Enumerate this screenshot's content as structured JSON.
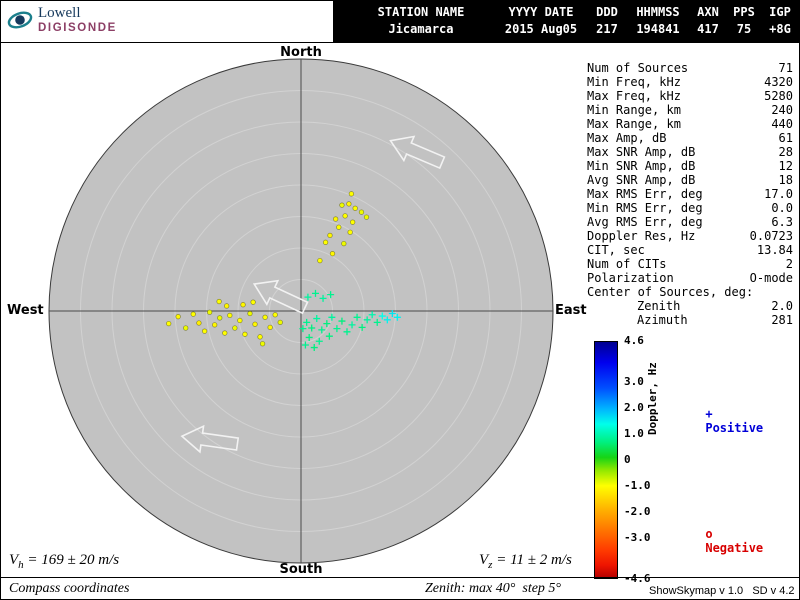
{
  "logo": {
    "name": "Lowell",
    "product": "DIGISONDE"
  },
  "header": {
    "columns": [
      "STATION NAME",
      "YYYY DATE",
      "DDD",
      "HHMMSS",
      "AXN",
      "PPS",
      "IGP"
    ],
    "values": [
      "Jicamarca",
      "2015 Aug05",
      "217",
      "194841",
      "417",
      "75",
      "+8G"
    ]
  },
  "compass": {
    "north": "North",
    "south": "South",
    "east": "East",
    "west": "West"
  },
  "stats": {
    "rows": [
      {
        "label": "Num of Sources",
        "value": "71"
      },
      {
        "label": "Min Freq, kHz",
        "value": "4320"
      },
      {
        "label": "Max Freq, kHz",
        "value": "5280"
      },
      {
        "label": "Min Range, km",
        "value": "240"
      },
      {
        "label": "Max Range, km",
        "value": "440"
      },
      {
        "label": "Max Amp, dB",
        "value": "61"
      },
      {
        "label": "Max SNR Amp, dB",
        "value": "28"
      },
      {
        "label": "Min SNR Amp, dB",
        "value": "12"
      },
      {
        "label": "Avg SNR Amp, dB",
        "value": "18"
      },
      {
        "label": "Max RMS Err, deg",
        "value": "17.0"
      },
      {
        "label": "Min RMS Err, deg",
        "value": "0.0"
      },
      {
        "label": "Avg RMS Err, deg",
        "value": "6.3"
      },
      {
        "label": "Doppler Res, Hz",
        "value": "0.0723"
      },
      {
        "label": "CIT, sec",
        "value": "13.84"
      },
      {
        "label": "Num of CITs",
        "value": "2"
      },
      {
        "label": "Polarization",
        "value": "O-mode"
      },
      {
        "label": "Center of Sources, deg:",
        "value": ""
      },
      {
        "label": "Zenith",
        "value": "2.0",
        "indent": true
      },
      {
        "label": "Azimuth",
        "value": "281",
        "indent": true
      }
    ]
  },
  "colorbar": {
    "label": "Doppler, Hz",
    "max": 4.6,
    "min": -4.6,
    "ticks": [
      "4.6",
      "3.0",
      "2.0",
      "1.0",
      "0",
      "-1.0",
      "-2.0",
      "-3.0",
      "-4.6"
    ],
    "legend": {
      "positive": {
        "marker": "+",
        "label": "Positive",
        "color": "#0000d8"
      },
      "negative": {
        "marker": "o",
        "label": "Negative",
        "color": "#d80000"
      }
    }
  },
  "footer": {
    "vh": {
      "symbol": "V",
      "sub": "h",
      "rest": " = 169 ± 20 m/s"
    },
    "vz": {
      "symbol": "V",
      "sub": "z",
      "rest": " = 11 ± 2 m/s"
    },
    "coordinates_note": "Compass coordinates",
    "zenith_note": "Zenith: max 40°  step 5°",
    "version": "ShowSkymap v 1.0   SD v 4.2"
  },
  "chart_data": {
    "type": "scatter",
    "projection": "polar zenith-azimuth skymap, compass coordinates",
    "zenith_max_deg": 40,
    "zenith_step_deg": 5,
    "doppler_range_hz": [
      -4.6,
      4.6
    ],
    "marker_rule": "plus = positive Doppler source, circle = negative Doppler source",
    "colormap_stops": [
      {
        "v": 4.6,
        "color": "#000090"
      },
      {
        "v": 3.8,
        "color": "#0000ee"
      },
      {
        "v": 2.8,
        "color": "#0050ff"
      },
      {
        "v": 2.0,
        "color": "#00b4ff"
      },
      {
        "v": 1.4,
        "color": "#00ffea"
      },
      {
        "v": 0.7,
        "color": "#00f080"
      },
      {
        "v": 0.1,
        "color": "#16d416"
      },
      {
        "v": -0.4,
        "color": "#90e800"
      },
      {
        "v": -1.0,
        "color": "#ffff00"
      },
      {
        "v": -1.9,
        "color": "#ffb400"
      },
      {
        "v": -2.7,
        "color": "#ff7800"
      },
      {
        "v": -3.5,
        "color": "#ff3c00"
      },
      {
        "v": -4.1,
        "color": "#ee1400"
      },
      {
        "v": -4.6,
        "color": "#b40000"
      }
    ],
    "points": [
      {
        "x": 8.0,
        "y": 18.6,
        "d": -1.0
      },
      {
        "x": 6.5,
        "y": 16.8,
        "d": -0.9
      },
      {
        "x": 7.6,
        "y": 17.0,
        "d": -1.1
      },
      {
        "x": 8.6,
        "y": 16.3,
        "d": -1.0
      },
      {
        "x": 9.6,
        "y": 15.7,
        "d": -0.9
      },
      {
        "x": 7.0,
        "y": 15.1,
        "d": -1.0
      },
      {
        "x": 5.5,
        "y": 14.6,
        "d": -1.1
      },
      {
        "x": 8.2,
        "y": 14.1,
        "d": -1.0
      },
      {
        "x": 10.4,
        "y": 14.9,
        "d": -0.9
      },
      {
        "x": 6.0,
        "y": 13.3,
        "d": -1.0
      },
      {
        "x": 4.6,
        "y": 12.0,
        "d": -1.1
      },
      {
        "x": 7.8,
        "y": 12.5,
        "d": -1.0
      },
      {
        "x": 6.8,
        "y": 10.7,
        "d": -0.9
      },
      {
        "x": 3.9,
        "y": 10.9,
        "d": -1.0
      },
      {
        "x": 5.0,
        "y": 9.1,
        "d": -1.1
      },
      {
        "x": 3.0,
        "y": 8.0,
        "d": -1.0
      },
      {
        "x": -21.0,
        "y": -2.0,
        "d": -1.0
      },
      {
        "x": -19.5,
        "y": -0.9,
        "d": -1.1
      },
      {
        "x": -18.3,
        "y": -2.7,
        "d": -0.9
      },
      {
        "x": -17.1,
        "y": -0.5,
        "d": -1.0
      },
      {
        "x": -16.2,
        "y": -1.9,
        "d": -1.2
      },
      {
        "x": -15.3,
        "y": -3.2,
        "d": -1.0
      },
      {
        "x": -14.5,
        "y": -0.2,
        "d": -0.9
      },
      {
        "x": -13.7,
        "y": -2.2,
        "d": -1.1
      },
      {
        "x": -13.0,
        "y": 1.5,
        "d": -1.0
      },
      {
        "x": -12.9,
        "y": -1.1,
        "d": -0.9
      },
      {
        "x": -12.1,
        "y": -3.5,
        "d": -1.0
      },
      {
        "x": -11.8,
        "y": 0.8,
        "d": -1.1
      },
      {
        "x": -11.3,
        "y": -0.7,
        "d": -1.0
      },
      {
        "x": -10.5,
        "y": -2.7,
        "d": -0.9
      },
      {
        "x": -9.7,
        "y": -1.5,
        "d": -1.0
      },
      {
        "x": -9.2,
        "y": 1.0,
        "d": -1.1
      },
      {
        "x": -8.9,
        "y": -3.7,
        "d": -1.0
      },
      {
        "x": -8.1,
        "y": -0.4,
        "d": -0.9
      },
      {
        "x": -7.6,
        "y": 1.4,
        "d": -1.0
      },
      {
        "x": -7.3,
        "y": -2.1,
        "d": -1.1
      },
      {
        "x": -6.5,
        "y": -4.1,
        "d": -1.0
      },
      {
        "x": -6.1,
        "y": -5.2,
        "d": -0.9
      },
      {
        "x": -5.7,
        "y": -1.0,
        "d": -1.0
      },
      {
        "x": -4.9,
        "y": -2.6,
        "d": -1.1
      },
      {
        "x": -4.1,
        "y": -0.6,
        "d": -1.0
      },
      {
        "x": -3.3,
        "y": -1.8,
        "d": -0.9
      },
      {
        "x": 0.3,
        "y": -2.8,
        "d": 0.8
      },
      {
        "x": 0.9,
        "y": -1.8,
        "d": 0.8
      },
      {
        "x": 1.7,
        "y": -2.7,
        "d": 0.7
      },
      {
        "x": 2.5,
        "y": -1.2,
        "d": 0.9
      },
      {
        "x": 3.3,
        "y": -3.0,
        "d": 0.8
      },
      {
        "x": 4.1,
        "y": -2.0,
        "d": 0.7
      },
      {
        "x": 4.9,
        "y": -1.0,
        "d": 0.9
      },
      {
        "x": 5.7,
        "y": -2.8,
        "d": 0.8
      },
      {
        "x": 6.5,
        "y": -1.6,
        "d": 0.7
      },
      {
        "x": 7.3,
        "y": -3.3,
        "d": 0.8
      },
      {
        "x": 8.1,
        "y": -2.2,
        "d": 0.9
      },
      {
        "x": 8.9,
        "y": -1.0,
        "d": 0.8
      },
      {
        "x": 9.7,
        "y": -2.6,
        "d": 0.7
      },
      {
        "x": 10.5,
        "y": -1.4,
        "d": 0.9
      },
      {
        "x": 11.3,
        "y": -0.6,
        "d": 1.0
      },
      {
        "x": 12.1,
        "y": -1.8,
        "d": 0.8
      },
      {
        "x": 12.9,
        "y": -0.8,
        "d": 1.4
      },
      {
        "x": 13.7,
        "y": -1.4,
        "d": 1.5
      },
      {
        "x": 14.5,
        "y": -0.4,
        "d": 1.6
      },
      {
        "x": 15.3,
        "y": -1.0,
        "d": 1.5
      },
      {
        "x": 1.3,
        "y": -4.2,
        "d": 0.7
      },
      {
        "x": 2.9,
        "y": -4.8,
        "d": 0.8
      },
      {
        "x": 4.5,
        "y": -4.0,
        "d": 0.7
      },
      {
        "x": 0.7,
        "y": -5.4,
        "d": 0.8
      },
      {
        "x": 2.1,
        "y": -5.8,
        "d": 0.7
      },
      {
        "x": 1.1,
        "y": 2.2,
        "d": 0.9
      },
      {
        "x": 2.3,
        "y": 2.8,
        "d": 0.8
      },
      {
        "x": 3.5,
        "y": 2.0,
        "d": 0.9
      },
      {
        "x": 4.7,
        "y": 2.6,
        "d": 0.8
      }
    ],
    "arrows": [
      {
        "x": 18.3,
        "y": 25.3,
        "angle_deg": 157
      },
      {
        "x": -3.4,
        "y": 2.4,
        "angle_deg": 155
      },
      {
        "x": -14.5,
        "y": -20.5,
        "angle_deg": 172
      }
    ]
  }
}
